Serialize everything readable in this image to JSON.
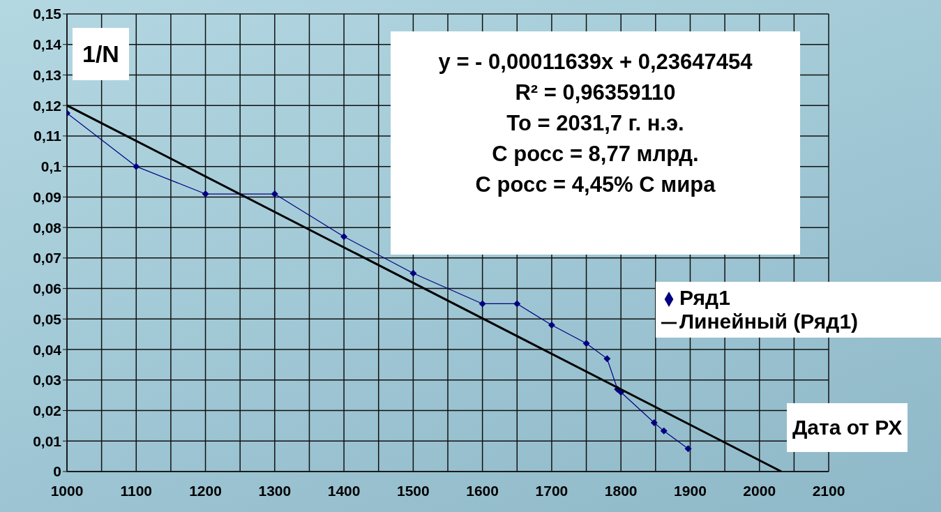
{
  "chart_data": {
    "type": "line",
    "ylabel": "1/N",
    "xlabel": "Дата от РХ",
    "annotations": [
      "y = - 0,00011639x + 0,23647454",
      "R² = 0,96359110",
      "To = 2031,7 г. н.э.",
      "С росс = 8,77 млрд.",
      "С росс = 4,45% С мира"
    ],
    "series": [
      {
        "name": "Ряд1",
        "color": "#000080",
        "marker": "diamond",
        "x": [
          1000,
          1100,
          1200,
          1300,
          1400,
          1500,
          1600,
          1650,
          1700,
          1750,
          1780,
          1795,
          1800,
          1848,
          1862,
          1897
        ],
        "values": [
          0.1175,
          0.1,
          0.091,
          0.091,
          0.077,
          0.065,
          0.055,
          0.055,
          0.048,
          0.042,
          0.037,
          0.027,
          0.026,
          0.016,
          0.0133,
          0.0075
        ]
      },
      {
        "name": "Линейный (Ряд1)",
        "color": "#000000",
        "marker": "none",
        "x": [
          1000,
          2031.7
        ],
        "values": [
          0.12,
          0
        ]
      }
    ],
    "xlim": [
      1000,
      2100
    ],
    "xticks": [
      1000,
      {
        "value": 1050,
        "label": null
      },
      1100,
      {
        "value": 1150,
        "label": null
      },
      1200,
      {
        "value": 1250,
        "label": null
      },
      1300,
      {
        "value": 1350,
        "label": null
      },
      1400,
      {
        "value": 1450,
        "label": null
      },
      1500,
      {
        "value": 1550,
        "label": null
      },
      1600,
      {
        "value": 1650,
        "label": null
      },
      1700,
      {
        "value": 1750,
        "label": null
      },
      1800,
      {
        "value": 1850,
        "label": null
      },
      1900,
      {
        "value": 1950,
        "label": null
      },
      2000,
      {
        "value": 2050,
        "label": null
      },
      2100
    ],
    "ylim": [
      0,
      0.15
    ],
    "yticks": [
      {
        "value": 0,
        "label": "0"
      },
      {
        "value": 0.01,
        "label": "0,01"
      },
      {
        "value": 0.02,
        "label": "0,02"
      },
      {
        "value": 0.03,
        "label": "0,03"
      },
      {
        "value": 0.04,
        "label": "0,04"
      },
      {
        "value": 0.05,
        "label": "0,05"
      },
      {
        "value": 0.06,
        "label": "0,06"
      },
      {
        "value": 0.07,
        "label": "0,07"
      },
      {
        "value": 0.08,
        "label": "0,08"
      },
      {
        "value": 0.09,
        "label": "0,09"
      },
      {
        "value": 0.1,
        "label": "0,1"
      },
      {
        "value": 0.11,
        "label": "0,11"
      },
      {
        "value": 0.12,
        "label": "0,12"
      },
      {
        "value": 0.13,
        "label": "0,13"
      },
      {
        "value": 0.14,
        "label": "0,14"
      },
      {
        "value": 0.15,
        "label": "0,15"
      }
    ],
    "grid": true,
    "legend": "right"
  }
}
